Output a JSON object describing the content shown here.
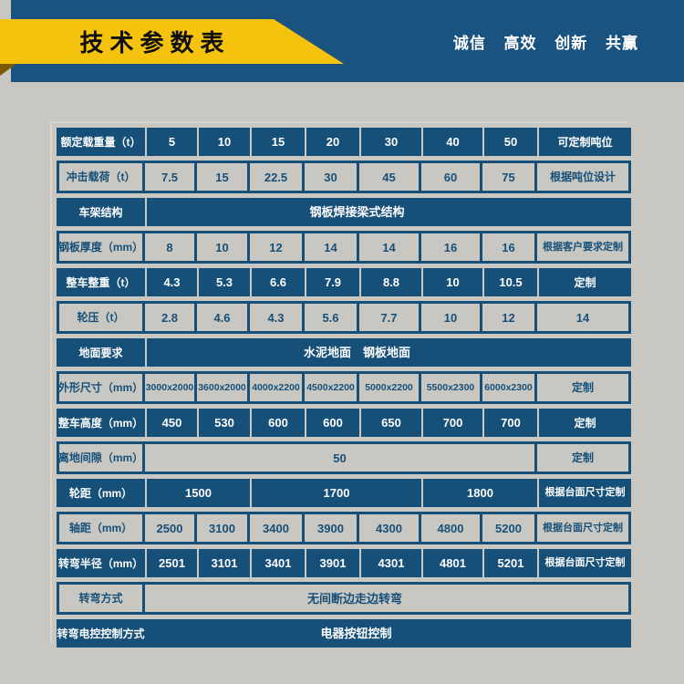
{
  "header": {
    "title": "技术参数表",
    "slogan": "诚信 高效 创新 共赢"
  },
  "colors": {
    "header_blue": "#1b5380",
    "table_blue": "#165079",
    "background_gray": "#c8c7c2",
    "ribbon_yellow": "#f5c30d",
    "ribbon_fold": "#7b5a06",
    "title_text": "#0e0e0e",
    "white_text": "#fdfdfd"
  },
  "table": {
    "rows": [
      {
        "label": "额定载重量（t）",
        "values": [
          "5",
          "10",
          "15",
          "20",
          "30",
          "40",
          "50",
          "可定制吨位"
        ]
      },
      {
        "label": "冲击载荷（t）",
        "values": [
          "7.5",
          "15",
          "22.5",
          "30",
          "45",
          "60",
          "75",
          "根据吨位设计"
        ]
      },
      {
        "label": "车架结构",
        "values": [
          "钢板焊接梁式结构"
        ]
      },
      {
        "label": "钢板厚度（mm）",
        "values": [
          "8",
          "10",
          "12",
          "14",
          "14",
          "16",
          "16",
          "根据客户要求定制"
        ]
      },
      {
        "label": "整车整重（t）",
        "values": [
          "4.3",
          "5.3",
          "6.6",
          "7.9",
          "8.8",
          "10",
          "10.5",
          "定制"
        ]
      },
      {
        "label": "轮压（t）",
        "values": [
          "2.8",
          "4.6",
          "4.3",
          "5.6",
          "7.7",
          "10",
          "12",
          "14"
        ]
      },
      {
        "label": "地面要求",
        "values": [
          "水泥地面　钢板地面"
        ]
      },
      {
        "label": "外形尺寸（mm）",
        "values": [
          "3000x2000",
          "3600x2000",
          "4000x2200",
          "4500x2200",
          "5000x2200",
          "5500x2300",
          "6000x2300",
          "定制"
        ]
      },
      {
        "label": "整车高度（mm）",
        "values": [
          "450",
          "530",
          "600",
          "600",
          "650",
          "700",
          "700",
          "定制"
        ]
      },
      {
        "label": "离地间隙（mm）",
        "values": [
          "50",
          "定制"
        ]
      },
      {
        "label": "轮距（mm）",
        "values": [
          "1500",
          "1700",
          "1800",
          "根据台面尺寸定制"
        ]
      },
      {
        "label": "轴距（mm）",
        "values": [
          "2500",
          "3100",
          "3400",
          "3900",
          "4300",
          "4800",
          "5200",
          "根据台面尺寸定制"
        ]
      },
      {
        "label": "转弯半径（mm）",
        "values": [
          "2501",
          "3101",
          "3401",
          "3901",
          "4301",
          "4801",
          "5201",
          "根据台面尺寸定制"
        ]
      },
      {
        "label": "转弯方式",
        "values": [
          "无间断边走边转弯"
        ]
      },
      {
        "label": "转弯电控控制方式",
        "values": [
          "电器按钮控制"
        ]
      }
    ]
  }
}
